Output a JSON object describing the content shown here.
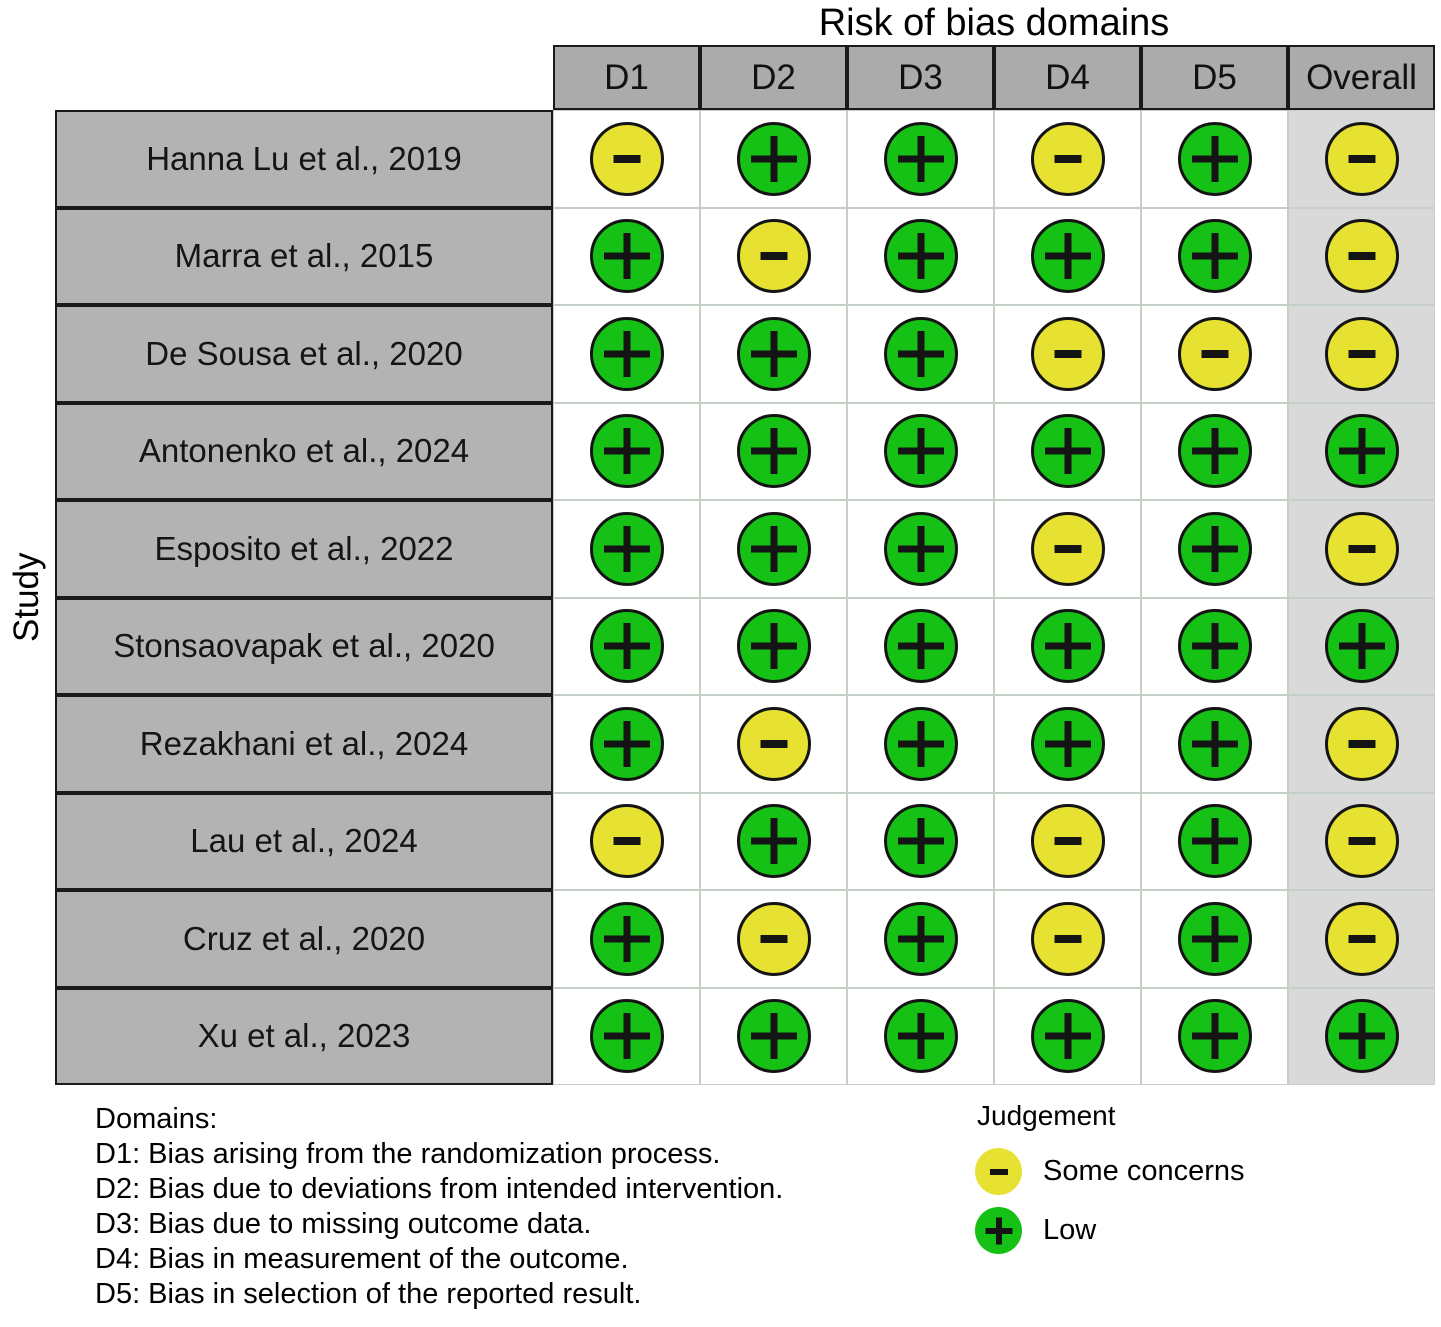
{
  "chart_data": {
    "type": "heatmap",
    "title": "Risk of bias domains",
    "ylabel": "Study",
    "legend_position": "bottom-right",
    "x_categories": [
      "D1",
      "D2",
      "D3",
      "D4",
      "D5",
      "Overall"
    ],
    "y_categories": [
      "Hanna Lu et al., 2019",
      "Marra et al., 2015",
      "De Sousa et al., 2020",
      "Antonenko et al., 2024",
      "Esposito et al., 2022",
      "Stonsaovapak et al., 2020",
      "Rezakhani et al., 2024",
      "Lau et al., 2024",
      "Cruz et al., 2020",
      "Xu et al., 2023"
    ],
    "values": [
      [
        "Some concerns",
        "Low",
        "Low",
        "Some concerns",
        "Low",
        "Some concerns"
      ],
      [
        "Low",
        "Some concerns",
        "Low",
        "Low",
        "Low",
        "Some concerns"
      ],
      [
        "Low",
        "Low",
        "Low",
        "Some concerns",
        "Some concerns",
        "Some concerns"
      ],
      [
        "Low",
        "Low",
        "Low",
        "Low",
        "Low",
        "Low"
      ],
      [
        "Low",
        "Low",
        "Low",
        "Some concerns",
        "Low",
        "Some concerns"
      ],
      [
        "Low",
        "Low",
        "Low",
        "Low",
        "Low",
        "Low"
      ],
      [
        "Low",
        "Some concerns",
        "Low",
        "Low",
        "Low",
        "Some concerns"
      ],
      [
        "Some concerns",
        "Low",
        "Low",
        "Some concerns",
        "Low",
        "Some concerns"
      ],
      [
        "Low",
        "Some concerns",
        "Low",
        "Some concerns",
        "Low",
        "Some concerns"
      ],
      [
        "Low",
        "Low",
        "Low",
        "Low",
        "Low",
        "Low"
      ]
    ]
  },
  "judgements": {
    "Low": {
      "symbol": "+",
      "color": "#16c116"
    },
    "Some concerns": {
      "symbol": "-",
      "color": "#e7e232"
    }
  },
  "legend": {
    "title": "Judgement",
    "items": [
      "Some concerns",
      "Low"
    ]
  },
  "footnotes": {
    "heading": "Domains:",
    "lines": [
      "D1: Bias arising from the randomization process.",
      "D2: Bias due to deviations from intended intervention.",
      "D3: Bias due to missing outcome data.",
      "D4: Bias in measurement of the outcome.",
      "D5: Bias in selection of the reported result."
    ]
  }
}
